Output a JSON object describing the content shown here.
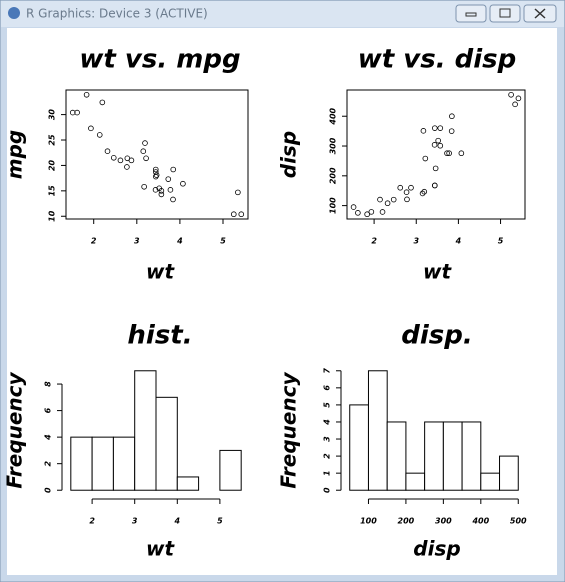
{
  "window": {
    "title": "R Graphics: Device 3 (ACTIVE)"
  },
  "chart_data": [
    {
      "type": "scatter",
      "title": "wt vs. mpg",
      "xlabel": "wt",
      "ylabel": "mpg",
      "color": "#000000",
      "x": [
        2.62,
        2.875,
        2.32,
        3.215,
        3.44,
        3.46,
        3.57,
        3.19,
        3.15,
        3.44,
        3.44,
        4.07,
        3.73,
        3.78,
        5.25,
        5.424,
        5.345,
        2.2,
        1.615,
        1.835,
        2.465,
        3.52,
        3.435,
        3.84,
        3.845,
        1.935,
        2.14,
        1.513,
        3.17,
        2.77,
        3.57,
        2.78
      ],
      "values": [
        21.0,
        21.0,
        22.8,
        21.4,
        18.7,
        18.1,
        14.3,
        24.4,
        22.8,
        19.2,
        17.8,
        16.4,
        17.3,
        15.2,
        10.4,
        10.4,
        14.7,
        32.4,
        30.4,
        33.9,
        21.5,
        15.5,
        15.2,
        13.3,
        19.2,
        27.3,
        26.0,
        30.4,
        15.8,
        19.7,
        15.0,
        21.4
      ],
      "xlim": [
        1.357,
        5.58
      ],
      "xticks": [
        2,
        3,
        4,
        5
      ],
      "ylim": [
        9.46,
        34.84
      ],
      "yticks": [
        10,
        15,
        20,
        25,
        30
      ]
    },
    {
      "type": "scatter",
      "title": "wt vs. disp",
      "xlabel": "wt",
      "ylabel": "disp",
      "color": "#000000",
      "x": [
        2.62,
        2.875,
        2.32,
        3.215,
        3.44,
        3.46,
        3.57,
        3.19,
        3.15,
        3.44,
        3.44,
        4.07,
        3.73,
        3.78,
        5.25,
        5.424,
        5.345,
        2.2,
        1.615,
        1.835,
        2.465,
        3.52,
        3.435,
        3.84,
        3.845,
        1.935,
        2.14,
        1.513,
        3.17,
        2.77,
        3.57,
        2.78
      ],
      "values": [
        160,
        160,
        108,
        258,
        360,
        225,
        360,
        146.7,
        140.8,
        167.6,
        167.6,
        275.8,
        275.8,
        275.8,
        472,
        460,
        440,
        78.7,
        75.7,
        71.1,
        120.1,
        318,
        304,
        350,
        400,
        79,
        120.3,
        95.1,
        351,
        145,
        301,
        121
      ],
      "xlim": [
        1.357,
        5.58
      ],
      "xticks": [
        2,
        3,
        4,
        5
      ],
      "ylim": [
        55.06,
        488.04
      ],
      "yticks": [
        100,
        200,
        300,
        400
      ]
    },
    {
      "type": "histogram",
      "title": "hist.",
      "xlabel": "wt",
      "ylabel": "Frequency",
      "color": "#000000",
      "bins": [
        1.5,
        2,
        2.5,
        3,
        3.5,
        4,
        4.5,
        5,
        5.5
      ],
      "values": [
        4,
        4,
        4,
        9,
        7,
        1,
        0,
        3
      ],
      "xlim": [
        1.34,
        5.66
      ],
      "xticks": [
        2,
        3,
        4,
        5
      ],
      "ylim": [
        -0.36,
        9.36
      ],
      "yticks": [
        0,
        2,
        4,
        6,
        8
      ]
    },
    {
      "type": "histogram",
      "title": "disp.",
      "xlabel": "disp",
      "ylabel": "Frequency",
      "color": "#000000",
      "bins": [
        50,
        100,
        150,
        200,
        250,
        300,
        350,
        400,
        450,
        500
      ],
      "values": [
        5,
        7,
        4,
        1,
        4,
        4,
        4,
        1,
        2
      ],
      "xlim": [
        32,
        518
      ],
      "xticks": [
        100,
        200,
        300,
        400,
        500
      ],
      "ylim": [
        -0.28,
        7.28
      ],
      "yticks": [
        0,
        1,
        2,
        3,
        4,
        5,
        6,
        7
      ]
    }
  ]
}
